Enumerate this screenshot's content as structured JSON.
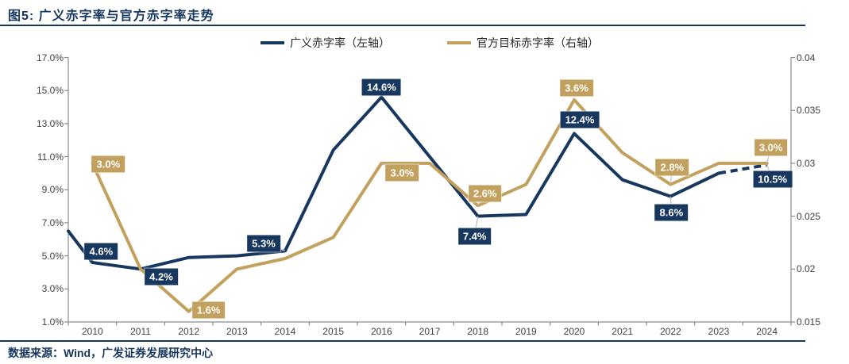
{
  "header": {
    "title": "图5: 广义赤字率与官方赤字率走势"
  },
  "legend": {
    "items": [
      {
        "label": "广义赤字率（左轴）",
        "color": "#17375E"
      },
      {
        "label": "官方目标赤字率（右轴）",
        "color": "#C2A05D"
      }
    ]
  },
  "footer": {
    "source": "数据来源：Wind，广发证券发展研究中心"
  },
  "colors": {
    "navy": "#17375E",
    "gold": "#C2A05D",
    "axis": "#8C8C8C",
    "tick_text": "#404040",
    "leader": "#BFBFBF",
    "rule": "#17375E"
  },
  "chart_data": {
    "type": "line",
    "title": "广义赤字率与官方赤字率走势",
    "categories": [
      "2010",
      "2011",
      "2012",
      "2013",
      "2014",
      "2015",
      "2016",
      "2017",
      "2018",
      "2019",
      "2020",
      "2021",
      "2022",
      "2023",
      "2024"
    ],
    "series": [
      {
        "name": "广义赤字率（左轴）",
        "axis": "left",
        "color": "#17375E",
        "values": [
          4.6,
          4.2,
          4.9,
          5.0,
          5.3,
          11.4,
          14.6,
          11.0,
          7.4,
          7.5,
          12.4,
          9.6,
          8.6,
          10.0,
          10.5
        ],
        "left_edge_value": 6.5,
        "dashed_segment": [
          13,
          14
        ],
        "labels": [
          {
            "index": 0,
            "text": "4.6%",
            "dx": 11,
            "dy": -14,
            "leader": false
          },
          {
            "index": 1,
            "text": "4.2%",
            "dx": 26,
            "dy": 10,
            "leader": true
          },
          {
            "index": 4,
            "text": "5.3%",
            "dx": -27,
            "dy": -9,
            "leader": true
          },
          {
            "index": 6,
            "text": "14.6%",
            "dx": 0,
            "dy": -13,
            "leader": false
          },
          {
            "index": 8,
            "text": "7.4%",
            "dx": -4,
            "dy": 25,
            "leader": true
          },
          {
            "index": 10,
            "text": "12.4%",
            "dx": 7,
            "dy": -17,
            "leader": false
          },
          {
            "index": 12,
            "text": "8.6%",
            "dx": 1,
            "dy": 20,
            "leader": true
          },
          {
            "index": 14,
            "text": "10.5%",
            "dx": 7,
            "dy": 18,
            "leader": true
          }
        ]
      },
      {
        "name": "官方目标赤字率（右轴）",
        "axis": "right",
        "color": "#C2A05D",
        "values": [
          0.03,
          0.02,
          0.016,
          0.02,
          0.021,
          0.023,
          0.03,
          0.03,
          0.026,
          0.028,
          0.036,
          0.031,
          0.028,
          0.03,
          0.03
        ],
        "labels": [
          {
            "index": 0,
            "text": "3.0%",
            "dx": 20,
            "dy": 1,
            "leader": false
          },
          {
            "index": 2,
            "text": "1.6%",
            "dx": 25,
            "dy": -2,
            "leader": false
          },
          {
            "index": 6,
            "text": "3.0%",
            "dx": 26,
            "dy": 12,
            "leader": true
          },
          {
            "index": 8,
            "text": "2.6%",
            "dx": 9,
            "dy": -15,
            "leader": true
          },
          {
            "index": 10,
            "text": "3.6%",
            "dx": 3,
            "dy": -15,
            "leader": false
          },
          {
            "index": 12,
            "text": "2.8%",
            "dx": 2,
            "dy": -22,
            "leader": true
          },
          {
            "index": 14,
            "text": "3.0%",
            "dx": 5,
            "dy": -20,
            "leader": true
          }
        ]
      }
    ],
    "left_axis": {
      "min": 1,
      "max": 17,
      "ticks": [
        "17.0%",
        "15.0%",
        "13.0%",
        "11.0%",
        "9.0%",
        "7.0%",
        "5.0%",
        "3.0%",
        "1.0%"
      ]
    },
    "right_axis": {
      "min": 0.015,
      "max": 0.04,
      "ticks": [
        "0.04",
        "0.035",
        "0.03",
        "0.025",
        "0.02",
        "0.015"
      ]
    },
    "grid": false,
    "legend_position": "top"
  }
}
